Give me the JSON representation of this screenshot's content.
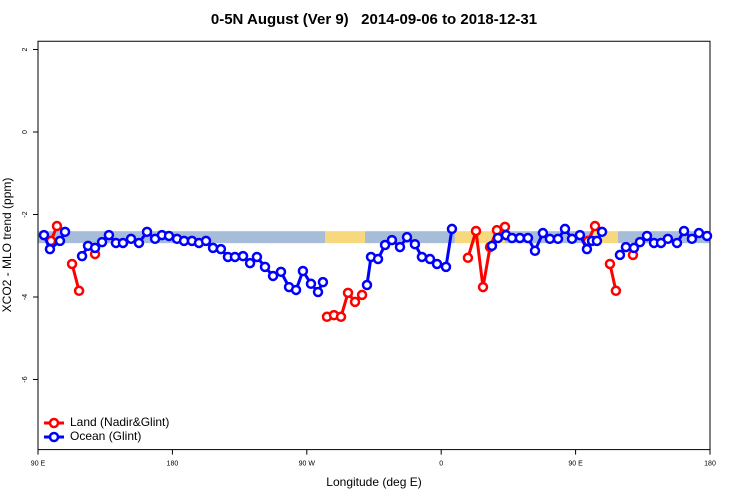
{
  "chart_data": {
    "type": "line",
    "title": "0-5N August (Ver 9)   2014-09-06 to 2018-12-31",
    "x_label": "Longitude (deg E)",
    "y_label": "XCO2 - MLO trend (ppm)",
    "xlim": [
      90,
      540
    ],
    "xticks": [
      {
        "value": 90,
        "label": "90 E"
      },
      180,
      {
        "value": 270,
        "label": "90 W"
      },
      {
        "value": 360,
        "label": "0"
      },
      {
        "value": 450,
        "label": "90 E"
      },
      {
        "value": 540,
        "label": "180"
      }
    ],
    "ylim": [
      -7.7,
      2.2
    ],
    "yticks": [
      -6,
      -4,
      -2,
      0,
      2
    ],
    "legend_position": "bottom-left",
    "band": {
      "y": -2.55,
      "segments": [
        {
          "from": 90,
          "to": 282.2,
          "color": "#a7bcd9"
        },
        {
          "from": 282.2,
          "to": 309.0,
          "color": "#f8d87c"
        },
        {
          "from": 309.0,
          "to": 369.2,
          "color": "#a7bcd9"
        },
        {
          "from": 369.2,
          "to": 402.7,
          "color": "#f8d87c"
        },
        {
          "from": 402.7,
          "to": 461.6,
          "color": "#a7bcd9"
        },
        {
          "from": 461.6,
          "to": 478.4,
          "color": "#f8d87c"
        },
        {
          "from": 478.4,
          "to": 540,
          "color": "#a7bcd9"
        }
      ]
    },
    "series": [
      {
        "name": "Land (Nadir&Glint)",
        "color": "#ff0000",
        "x": [
          98.7,
          102.7,
          null,
          112.8,
          117.5,
          null,
          128.2,
          null,
          283.5,
          288.2,
          292.9,
          297.6,
          302.3,
          307.0,
          null,
          377.9,
          383.3,
          388.0,
          392.7,
          397.3,
          402.7,
          null,
          458.3,
          463.0,
          null,
          473.0,
          477.0,
          null,
          488.4
        ],
        "values": [
          -2.64,
          -2.28,
          null,
          -3.2,
          -3.85,
          null,
          -2.96,
          null,
          -4.48,
          -4.44,
          -4.48,
          -3.9,
          -4.12,
          -3.95,
          null,
          -3.05,
          -2.4,
          -3.76,
          -2.79,
          -2.38,
          -2.3,
          null,
          -2.64,
          -2.28,
          null,
          -3.2,
          -3.85,
          null,
          -2.98
        ]
      },
      {
        "name": "Ocean (Glint)",
        "color": "#0000ff",
        "x": [
          94.0,
          98.0,
          104.7,
          108.1,
          null,
          119.5,
          123.5,
          128.2,
          132.9,
          137.5,
          142.2,
          146.9,
          152.3,
          157.6,
          163.0,
          168.4,
          173.0,
          177.7,
          183.1,
          187.8,
          193.1,
          197.8,
          202.5,
          207.2,
          212.5,
          217.2,
          221.9,
          227.3,
          232.0,
          236.6,
          242.0,
          247.4,
          252.7,
          258.1,
          262.8,
          267.4,
          272.8,
          277.5,
          280.8,
          null,
          310.3,
          313.0,
          317.7,
          322.4,
          327.0,
          332.4,
          337.1,
          342.4,
          347.1,
          352.5,
          357.2,
          363.2,
          367.2,
          null,
          394.0,
          398.0,
          403.4,
          407.4,
          412.7,
          418.1,
          422.8,
          428.1,
          432.8,
          438.2,
          442.9,
          447.6,
          452.9,
          457.6,
          461.0,
          464.3,
          467.7,
          null,
          479.7,
          483.7,
          489.1,
          493.1,
          497.8,
          502.5,
          507.2,
          511.8,
          517.9,
          522.6,
          527.9,
          532.6,
          538.0
        ],
        "values": [
          -2.5,
          -2.84,
          -2.64,
          -2.42,
          null,
          -3.01,
          -2.76,
          -2.81,
          -2.67,
          -2.5,
          -2.69,
          -2.69,
          -2.59,
          -2.69,
          -2.42,
          -2.59,
          -2.5,
          -2.52,
          -2.59,
          -2.64,
          -2.64,
          -2.69,
          -2.64,
          -2.81,
          -2.84,
          -3.03,
          -3.03,
          -3.01,
          -3.18,
          -3.03,
          -3.27,
          -3.49,
          -3.39,
          -3.76,
          -3.83,
          -3.37,
          -3.68,
          -3.88,
          -3.64,
          null,
          -3.71,
          -3.03,
          -3.08,
          -2.74,
          -2.62,
          -2.79,
          -2.55,
          -2.72,
          -3.03,
          -3.08,
          -3.2,
          -3.27,
          -2.35,
          null,
          -2.76,
          -2.57,
          -2.5,
          -2.57,
          -2.57,
          -2.57,
          -2.88,
          -2.45,
          -2.59,
          -2.59,
          -2.35,
          -2.59,
          -2.5,
          -2.84,
          -2.64,
          -2.64,
          -2.42,
          null,
          -2.98,
          -2.79,
          -2.81,
          -2.67,
          -2.52,
          -2.69,
          -2.69,
          -2.59,
          -2.69,
          -2.4,
          -2.59,
          -2.45,
          -2.52
        ]
      }
    ]
  }
}
